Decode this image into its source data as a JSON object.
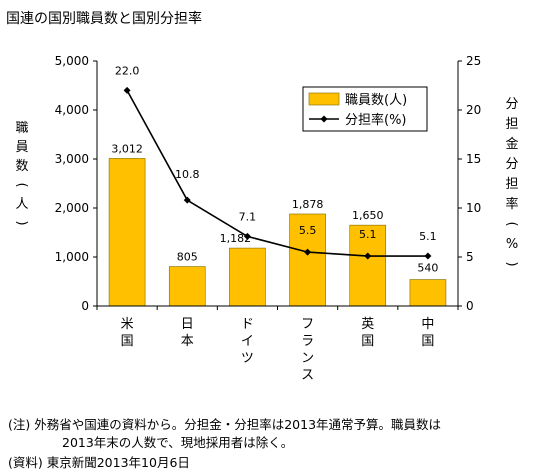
{
  "title": "国連の国別職員数と国別分担率",
  "notes": {
    "line1": "(注) 外務省や国連の資料から。分担金・分担率は2013年通常予算。職員数は",
    "line2": "2013年末の人数で、現地採用者は除く。",
    "line3": "(資料) 東京新聞2013年10月6日"
  },
  "chart_data": {
    "type": "bar+line",
    "categories": [
      "米国",
      "日本",
      "ドイツ",
      "フランス",
      "英国",
      "中国"
    ],
    "series": [
      {
        "name": "職員数(人)",
        "type": "bar",
        "axis": "left",
        "values": [
          3012,
          805,
          1182,
          1878,
          1650,
          540
        ],
        "labels": [
          "3,012",
          "805",
          "1,182",
          "1,878",
          "1,650",
          "540"
        ]
      },
      {
        "name": "分担率(%)",
        "type": "line",
        "axis": "right",
        "values": [
          22.0,
          10.8,
          7.1,
          5.5,
          5.1,
          5.1
        ],
        "labels": [
          "22.0",
          "10.8",
          "7.1",
          "5.5",
          "5.1",
          "5.1"
        ]
      }
    ],
    "ylabel_left": "職員数(人)",
    "ylabel_right": "分担金分担率(%)",
    "ylim_left": [
      0,
      5000
    ],
    "ylim_right": [
      0,
      25
    ],
    "yticks_left": [
      "0",
      "1,000",
      "2,000",
      "3,000",
      "4,000",
      "5,000"
    ],
    "yticks_right": [
      "0",
      "5",
      "10",
      "15",
      "20",
      "25"
    ],
    "legend_position": "top-right",
    "grid": false,
    "colors": {
      "bar": "#FFC000",
      "bar_stroke": "#7f6a00",
      "line": "#000000"
    }
  }
}
